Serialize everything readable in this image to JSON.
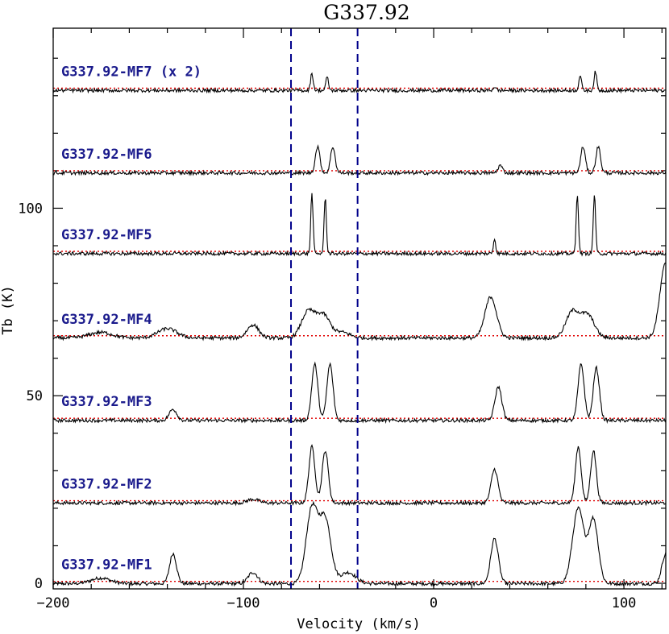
{
  "chart_data": {
    "type": "line",
    "title": "G337.92",
    "xlabel": "Velocity (km/s)",
    "ylabel": "Tb (K)",
    "xlim": [
      -200,
      122
    ],
    "ylim": [
      -1.5,
      148
    ],
    "x_ticks": [
      {
        "value": -200,
        "label": "−200"
      },
      {
        "value": -100,
        "label": "−100"
      },
      {
        "value": 0,
        "label": "0"
      },
      {
        "value": 100,
        "label": "100"
      }
    ],
    "y_ticks": [
      {
        "value": 0,
        "label": "0"
      },
      {
        "value": 50,
        "label": "50"
      },
      {
        "value": 100,
        "label": "100"
      }
    ],
    "grid": false,
    "vlines": [
      -75,
      -40
    ],
    "vline_color": "#00008b",
    "baseline_color": "#e00000",
    "line_color": "#000000",
    "label_color": "#1a1a8c",
    "noise_amplitude": 0.45,
    "series": [
      {
        "name": "G337.92-MF1",
        "baseline": 0.5,
        "peaks": [
          {
            "v": -175,
            "amp": 1.5,
            "w": 5
          },
          {
            "v": -137,
            "amp": 8,
            "w": 1.8
          },
          {
            "v": -95,
            "amp": 3,
            "w": 2.5
          },
          {
            "v": -64,
            "amp": 20,
            "w": 3
          },
          {
            "v": -57,
            "amp": 17,
            "w": 3
          },
          {
            "v": -45,
            "amp": 3,
            "w": 4
          },
          {
            "v": 32,
            "amp": 12,
            "w": 2
          },
          {
            "v": 76,
            "amp": 20,
            "w": 3
          },
          {
            "v": 84,
            "amp": 17,
            "w": 2.5
          },
          {
            "v": 122,
            "amp": 8,
            "w": 2
          }
        ]
      },
      {
        "name": "G337.92-MF2",
        "baseline": 22,
        "peaks": [
          {
            "v": -95,
            "amp": 1,
            "w": 3
          },
          {
            "v": -64,
            "amp": 15,
            "w": 1.6
          },
          {
            "v": -57,
            "amp": 14,
            "w": 1.6
          },
          {
            "v": 32,
            "amp": 9,
            "w": 1.8
          },
          {
            "v": 76,
            "amp": 15,
            "w": 1.5
          },
          {
            "v": 84,
            "amp": 14,
            "w": 1.5
          }
        ]
      },
      {
        "name": "G337.92-MF3",
        "baseline": 44,
        "peaks": [
          {
            "v": -137,
            "amp": 3,
            "w": 2
          },
          {
            "v": -62.5,
            "amp": 15,
            "w": 1.6
          },
          {
            "v": -54.5,
            "amp": 15,
            "w": 1.6
          },
          {
            "v": 34,
            "amp": 9,
            "w": 1.8
          },
          {
            "v": 77.5,
            "amp": 15,
            "w": 1.6
          },
          {
            "v": 85.5,
            "amp": 14,
            "w": 1.6
          }
        ]
      },
      {
        "name": "G337.92-MF4",
        "baseline": 66,
        "peaks": [
          {
            "v": -175,
            "amp": 1.5,
            "w": 6
          },
          {
            "v": -140,
            "amp": 2.5,
            "w": 5
          },
          {
            "v": -95,
            "amp": 3.5,
            "w": 3
          },
          {
            "v": -66,
            "amp": 7,
            "w": 3.5
          },
          {
            "v": -58,
            "amp": 6,
            "w": 3.5
          },
          {
            "v": -48,
            "amp": 1.5,
            "w": 4
          },
          {
            "v": 30,
            "amp": 11,
            "w": 3
          },
          {
            "v": 73,
            "amp": 7,
            "w": 3.5
          },
          {
            "v": 81,
            "amp": 6,
            "w": 3.5
          },
          {
            "v": 122,
            "amp": 20,
            "w": 3
          }
        ]
      },
      {
        "name": "G337.92-MF5",
        "baseline": 88.5,
        "peaks": [
          {
            "v": -64,
            "amp": 16,
            "w": 0.6
          },
          {
            "v": -57,
            "amp": 15,
            "w": 0.6
          },
          {
            "v": 32,
            "amp": 4,
            "w": 0.6
          },
          {
            "v": 75.5,
            "amp": 16,
            "w": 0.6
          },
          {
            "v": 84.5,
            "amp": 16,
            "w": 0.6
          }
        ]
      },
      {
        "name": "G337.92-MF6",
        "baseline": 110,
        "peaks": [
          {
            "v": -61,
            "amp": 7,
            "w": 1.2
          },
          {
            "v": -53,
            "amp": 7,
            "w": 1.2
          },
          {
            "v": 35,
            "amp": 2,
            "w": 1.2
          },
          {
            "v": 78.5,
            "amp": 7,
            "w": 1.2
          },
          {
            "v": 86.5,
            "amp": 7,
            "w": 1.2
          }
        ]
      },
      {
        "name": "G337.92-MF7 (x 2)",
        "baseline": 132,
        "peaks": [
          {
            "v": -64,
            "amp": 4.5,
            "w": 0.7
          },
          {
            "v": -56,
            "amp": 3.5,
            "w": 0.7
          },
          {
            "v": 32,
            "amp": 1,
            "w": 0.7
          },
          {
            "v": 77,
            "amp": 4,
            "w": 0.7
          },
          {
            "v": 85,
            "amp": 5,
            "w": 0.7
          }
        ]
      }
    ]
  }
}
